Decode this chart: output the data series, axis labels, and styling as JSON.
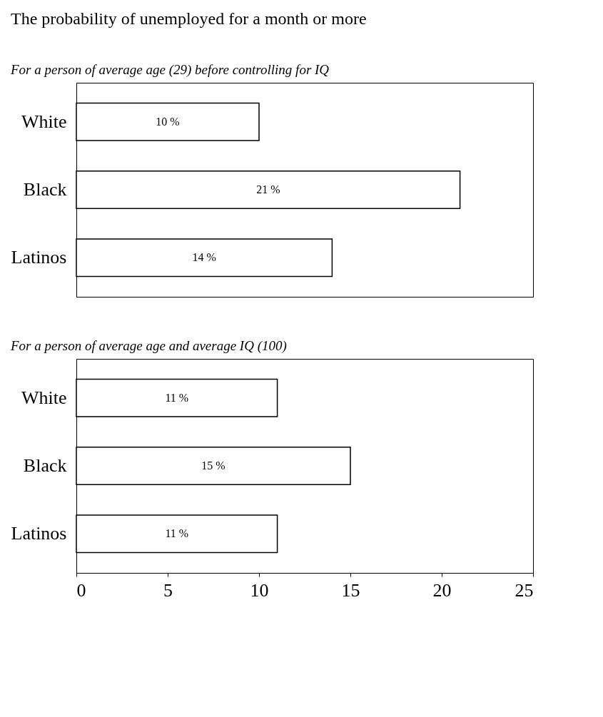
{
  "chart_data": [
    {
      "type": "bar",
      "orientation": "horizontal",
      "title": "The probability of unemployed for a month or more",
      "subtitle": "For a person of average age (29) before controlling for IQ",
      "categories": [
        "White",
        "Black",
        "Latinos"
      ],
      "values": [
        10,
        21,
        14
      ],
      "value_labels": [
        "10 %",
        "21 %",
        "14 %"
      ],
      "color": "#ffffff",
      "xlim": [
        0,
        25
      ],
      "xticks": [
        0,
        5,
        10,
        15,
        20,
        25
      ],
      "tick_labels": "y",
      "grid": false
    },
    {
      "type": "bar",
      "orientation": "horizontal",
      "subtitle": "For a person of average age and average IQ (100)",
      "categories": [
        "White",
        "Black",
        "Latinos"
      ],
      "values": [
        11,
        15,
        11
      ],
      "value_labels": [
        "11 %",
        "15 %",
        "11 %"
      ],
      "color": "#ffffff",
      "xlim": [
        0,
        25
      ],
      "xticks": [
        0,
        5,
        10,
        15,
        20,
        25
      ],
      "grid": false
    }
  ]
}
